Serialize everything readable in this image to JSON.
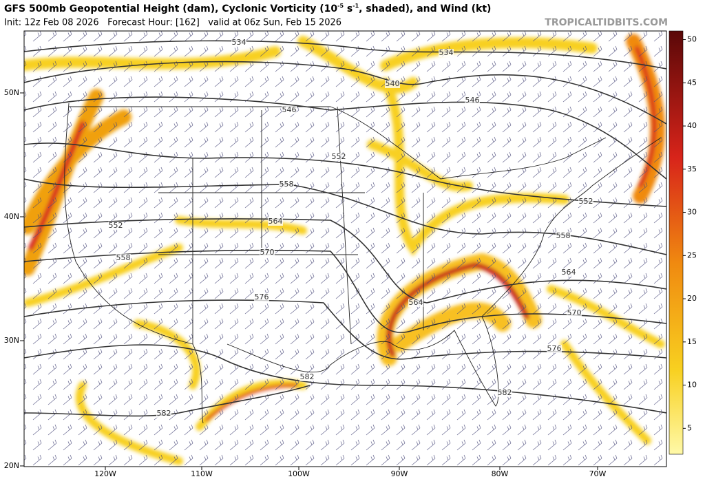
{
  "header": {
    "title": [
      "GFS 500mb Geopotential Height (dam), Cyclonic Vorticity (10",
      "-5",
      " s",
      "-1",
      ", shaded), and Wind (kt)"
    ],
    "subtitle": "Init: 12z Feb 08 2026   Forecast Hour: [162]   valid at 06z Sun, Feb 15 2026",
    "credit": "TROPICALTIDBITS.COM"
  },
  "map": {
    "lat_labels": [
      "50N",
      "40N",
      "30N",
      "20N"
    ],
    "lon_labels": [
      "120W",
      "110W",
      "100W",
      "90W",
      "80W",
      "70W"
    ],
    "contour_labels": [
      "534",
      "534",
      "540",
      "546",
      "546",
      "552",
      "552",
      "552",
      "558",
      "558",
      "558",
      "564",
      "564",
      "564",
      "570",
      "570",
      "576",
      "576",
      "582",
      "582",
      "582"
    ]
  },
  "colorbar": {
    "lim": [
      2,
      51
    ],
    "ticks": [
      5,
      10,
      15,
      20,
      25,
      30,
      35,
      40,
      45,
      50
    ]
  }
}
